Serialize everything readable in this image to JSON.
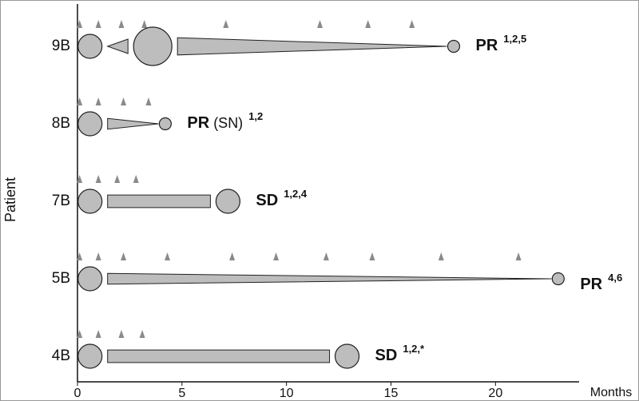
{
  "chart_data": {
    "type": "swimmer",
    "x_label": "Months",
    "y_label": "Patient",
    "xlim": [
      0,
      24
    ],
    "xticks": [
      0,
      5,
      10,
      15,
      20
    ],
    "categories": [
      "9B",
      "8B",
      "7B",
      "5B",
      "4B"
    ],
    "color": "#bdbdbd",
    "marker_color": "#8a8a8a",
    "patients": [
      {
        "markers": [
          0.1,
          1.0,
          2.1,
          3.2,
          7.1,
          11.6,
          13.9,
          16.0
        ],
        "assessments": {
          "x": [
            0.6,
            3.6,
            18.0
          ],
          "size": [
            1.0,
            1.6,
            0.5
          ]
        },
        "response": "PR",
        "sup": "1,2,5"
      },
      {
        "markers": [
          0.1,
          1.0,
          2.2,
          3.4
        ],
        "assessments": {
          "x": [
            0.6,
            4.2
          ],
          "size": [
            1.0,
            0.5
          ]
        },
        "response": "PR",
        "note": "(SN)",
        "sup": "1,2"
      },
      {
        "markers": [
          0.1,
          1.0,
          1.9,
          2.8
        ],
        "assessments": {
          "x": [
            0.6,
            7.2
          ],
          "size": [
            1.0,
            1.0
          ]
        },
        "response": "SD",
        "sup": "1,2,4"
      },
      {
        "markers": [
          0.1,
          1.0,
          2.2,
          4.3,
          7.4,
          9.5,
          11.9,
          14.1,
          17.4,
          21.1
        ],
        "assessments": {
          "x": [
            0.6,
            23.0
          ],
          "size": [
            1.0,
            0.5
          ]
        },
        "response": "PR",
        "sup": "4,6"
      },
      {
        "markers": [
          0.1,
          1.0,
          2.1,
          3.1
        ],
        "assessments": {
          "x": [
            0.6,
            12.9
          ],
          "size": [
            1.0,
            1.0
          ]
        },
        "response": "SD",
        "sup": "1,2,*"
      }
    ]
  }
}
